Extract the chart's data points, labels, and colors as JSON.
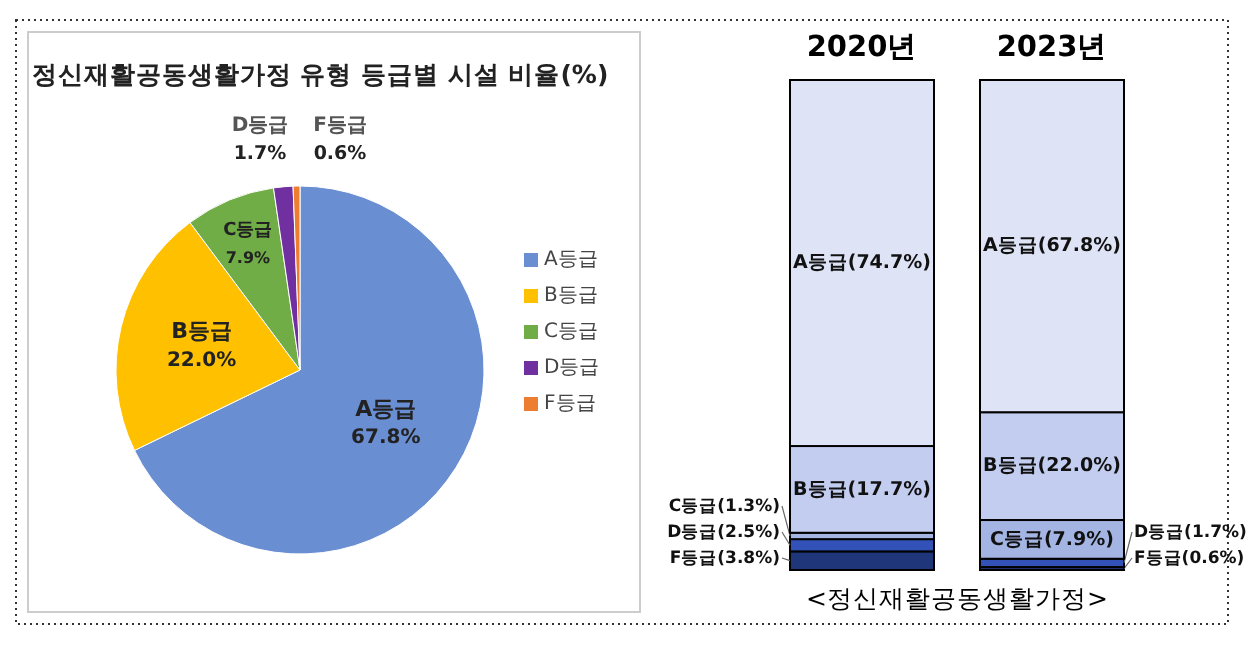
{
  "chart_data": [
    {
      "type": "pie",
      "title": "정신재활공동생활가정 유형 등급별 시설 비율(%)",
      "categories": [
        "A등급",
        "B등급",
        "C등급",
        "D등급",
        "F등급"
      ],
      "values": [
        67.8,
        22.0,
        7.9,
        1.7,
        0.6
      ],
      "value_labels": [
        "67.8%",
        "22.0%",
        "7.9%",
        "1.7%",
        "0.6%"
      ],
      "colors": [
        "#6a8ed2",
        "#ffc000",
        "#70ad47",
        "#7030a0",
        "#ed7d31"
      ],
      "legend": "right"
    },
    {
      "type": "bar",
      "stacked": true,
      "categories": [
        "2020년",
        "2023년"
      ],
      "xlabel": "<정신재활공동생활가정>",
      "series": [
        {
          "color": "#1f367a",
          "values": [
            3.8,
            0.6
          ],
          "value_labels": [
            "F등급(3.8%)",
            "F등급(0.6%)"
          ]
        },
        {
          "color": "#3252b8",
          "values": [
            2.5,
            1.7
          ],
          "value_labels": [
            "D등급(2.5%)",
            "D등급(1.7%)"
          ]
        },
        {
          "color": "#a4b5e4",
          "values": [
            1.3,
            7.9
          ],
          "value_labels": [
            "C등급(1.3%)",
            "C등급(7.9%)"
          ]
        },
        {
          "color": "#c3cdef",
          "values": [
            17.7,
            22.0
          ],
          "value_labels": [
            "B등급(17.7%)",
            "B등급(22.0%)"
          ]
        },
        {
          "color": "#dee4f6",
          "values": [
            74.7,
            67.8
          ],
          "value_labels": [
            "A등급(74.7%)",
            "A등급(67.8%)"
          ]
        }
      ]
    }
  ]
}
